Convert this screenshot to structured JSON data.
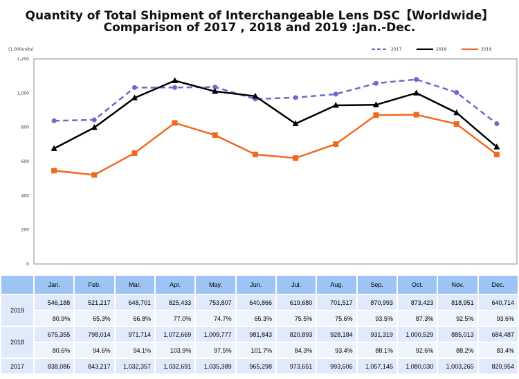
{
  "title_line1": "Quantity of Total Shipment of Interchangeable Lens DSC【Worldwide】",
  "title_line2": "Comparison of 2017 , 2018 and 2019 :Jan.-Dec.",
  "chart_data": {
    "type": "line",
    "ylabel": "(1,000units)",
    "ylim": [
      0,
      1200
    ],
    "yticks": [
      "0",
      "200",
      "400",
      "600",
      "800",
      "1,000",
      "1,200"
    ],
    "categories": [
      "Jan.",
      "Feb.",
      "Mar.",
      "Apr.",
      "May.",
      "Jun.",
      "Jul.",
      "Aug.",
      "Sep.",
      "Oct.",
      "Nov.",
      "Dec."
    ],
    "legend_position": "top-right",
    "series": [
      {
        "name": "2017",
        "color": "#6a6ad0",
        "dashed": true,
        "marker": "circle",
        "values": [
          838.086,
          843.217,
          1032.357,
          1032.691,
          1035.389,
          965.298,
          973.651,
          993.606,
          1057.145,
          1080.03,
          1003.265,
          820.954
        ]
      },
      {
        "name": "2018",
        "color": "#000000",
        "dashed": false,
        "marker": "triangle",
        "values": [
          675.355,
          798.014,
          971.714,
          1072.669,
          1009.777,
          981.843,
          820.893,
          928.184,
          931.319,
          1000.529,
          885.013,
          684.487
        ]
      },
      {
        "name": "2019",
        "color": "#ee6a22",
        "dashed": false,
        "marker": "square",
        "values": [
          546.188,
          521.217,
          648.701,
          825.433,
          753.807,
          640.866,
          619.68,
          701.517,
          870.993,
          873.423,
          818.951,
          640.714
        ]
      }
    ]
  },
  "table": {
    "months": [
      "Jan.",
      "Feb.",
      "Mar.",
      "Apr.",
      "May.",
      "Jun.",
      "Jul.",
      "Aug.",
      "Sep.",
      "Oct.",
      "Nov.",
      "Dec."
    ],
    "rows": [
      {
        "year": "2019",
        "units": [
          "546,188",
          "521,217",
          "648,701",
          "825,433",
          "753,807",
          "640,866",
          "619,680",
          "701,517",
          "870,993",
          "873,423",
          "818,951",
          "640,714"
        ],
        "pct": [
          "80.9%",
          "65.3%",
          "66.8%",
          "77.0%",
          "74.7%",
          "65.3%",
          "75.5%",
          "75.6%",
          "93.5%",
          "87.3%",
          "92.5%",
          "93.6%"
        ]
      },
      {
        "year": "2018",
        "units": [
          "675,355",
          "798,014",
          "971,714",
          "1,072,669",
          "1,009,777",
          "981,843",
          "820,893",
          "928,184",
          "931,319",
          "1,000,529",
          "885,013",
          "684,487"
        ],
        "pct": [
          "80.6%",
          "94.6%",
          "94.1%",
          "103.9%",
          "97.5%",
          "101.7%",
          "84.3%",
          "93.4%",
          "88.1%",
          "92.6%",
          "88.2%",
          "83.4%"
        ]
      },
      {
        "year": "2017",
        "units": [
          "838,086",
          "843,217",
          "1,032,357",
          "1,032,691",
          "1,035,389",
          "965,298",
          "973,651",
          "993,606",
          "1,057,145",
          "1,080,030",
          "1,003,265",
          "820,954"
        ]
      }
    ]
  }
}
